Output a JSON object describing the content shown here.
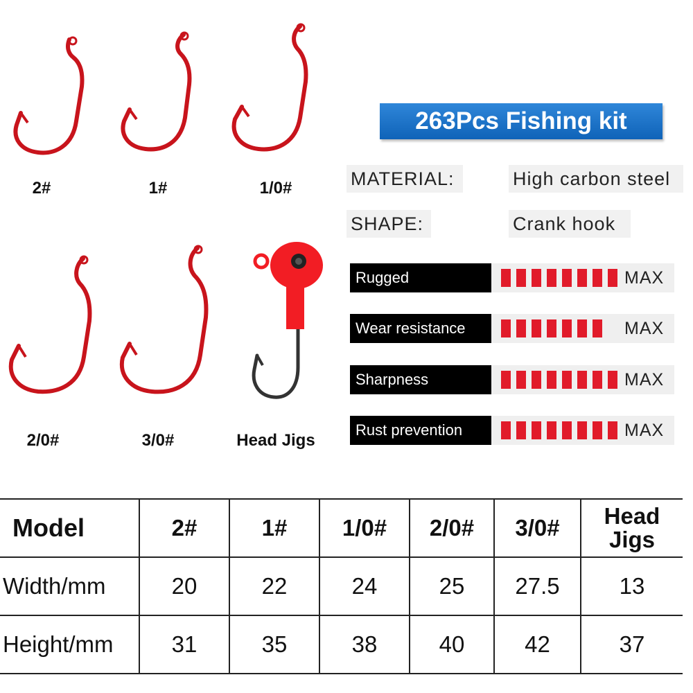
{
  "banner": {
    "title": "263Pcs Fishing kit"
  },
  "hooks": [
    {
      "label": "2#"
    },
    {
      "label": "1#"
    },
    {
      "label": "1/0#"
    },
    {
      "label": "2/0#"
    },
    {
      "label": "3/0#"
    },
    {
      "label": "Head Jigs"
    }
  ],
  "specs": {
    "material_key": "MATERIAL:",
    "material_val": "High carbon steel",
    "shape_key": "SHAPE:",
    "shape_val": "Crank hook"
  },
  "ratings": [
    {
      "label": "Rugged",
      "value_text": "MAX",
      "bars": 8
    },
    {
      "label": "Wear resistance",
      "value_text": "MAX",
      "bars": 7
    },
    {
      "label": "Sharpness",
      "value_text": "MAX",
      "bars": 8
    },
    {
      "label": "Rust prevention",
      "value_text": "MAX",
      "bars": 8
    }
  ],
  "colors": {
    "hook_red": "#c8141c",
    "banner_blue": "#1a6fc2",
    "bar_red": "#e11b2a"
  },
  "table": {
    "header": [
      "Model",
      "2#",
      "1#",
      "1/0#",
      "2/0#",
      "3/0#",
      "Head Jigs"
    ],
    "rows": [
      {
        "label": "Width/mm",
        "values": [
          "20",
          "22",
          "24",
          "25",
          "27.5",
          "13"
        ]
      },
      {
        "label": "Height/mm",
        "values": [
          "31",
          "35",
          "38",
          "40",
          "42",
          "37"
        ]
      }
    ]
  }
}
